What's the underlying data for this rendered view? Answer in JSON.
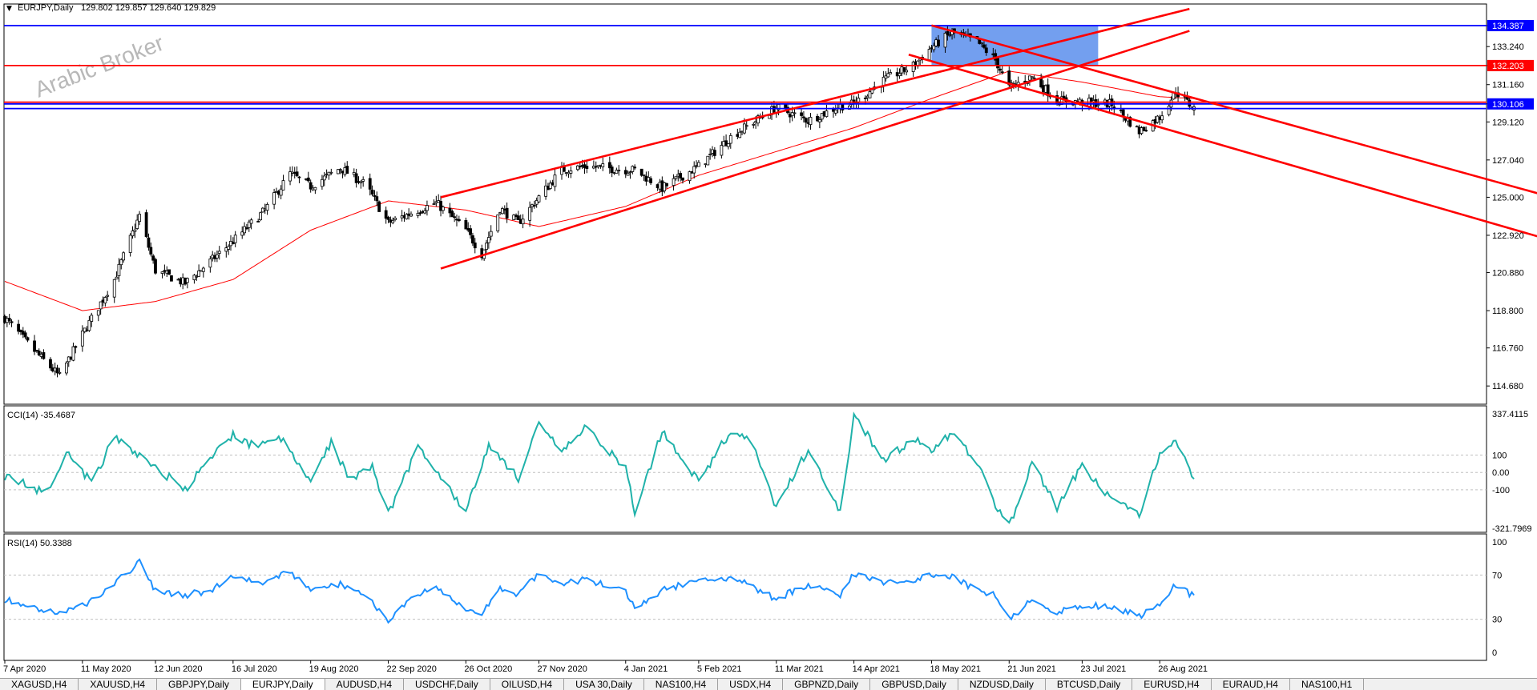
{
  "header": {
    "symbol_label": "EURJPY,Daily",
    "ohlc": "129.802 129.857 129.640 129.829",
    "watermark": "Arabic Broker"
  },
  "price_axis": {
    "ticks": [
      "134.387",
      "133.240",
      "132.203",
      "131.160",
      "130.106",
      "129.120",
      "127.040",
      "125.000",
      "122.920",
      "120.880",
      "118.800",
      "116.760",
      "114.680"
    ],
    "highlight_labels": [
      {
        "text": "134.387",
        "color": "#0000ff"
      },
      {
        "text": "132.203",
        "color": "#ff0000"
      },
      {
        "text": "130.106",
        "color": "#0000ff"
      }
    ]
  },
  "cci_panel": {
    "label": "CCI(14) -35.4687",
    "ticks": [
      "337.4115",
      "100",
      "0.00",
      "-100",
      "-321.7969"
    ]
  },
  "rsi_panel": {
    "label": "RSI(14) 50.3388",
    "ticks": [
      "100",
      "70",
      "30",
      "0"
    ]
  },
  "time_axis": {
    "ticks": [
      "7 Apr 2020",
      "11 May 2020",
      "12 Jun 2020",
      "16 Jul 2020",
      "19 Aug 2020",
      "22 Sep 2020",
      "26 Oct 2020",
      "27 Nov 2020",
      "4 Jan 2021",
      "5 Feb 2021",
      "11 Mar 2021",
      "14 Apr 2021",
      "18 May 2021",
      "21 Jun 2021",
      "23 Jul 2021",
      "26 Aug 2021"
    ]
  },
  "tabs": [
    {
      "label": "XAGUSD,H4",
      "active": false
    },
    {
      "label": "XAUUSD,H4",
      "active": false
    },
    {
      "label": "GBPJPY,Daily",
      "active": false
    },
    {
      "label": "EURJPY,Daily",
      "active": true
    },
    {
      "label": "AUDUSD,H4",
      "active": false
    },
    {
      "label": "USDCHF,Daily",
      "active": false
    },
    {
      "label": "OILUSD,H4",
      "active": false
    },
    {
      "label": "USA 30,Daily",
      "active": false
    },
    {
      "label": "NAS100,H4",
      "active": false
    },
    {
      "label": "USDX,H4",
      "active": false
    },
    {
      "label": "GBPNZD,Daily",
      "active": false
    },
    {
      "label": "GBPUSD,Daily",
      "active": false
    },
    {
      "label": "NZDUSD,Daily",
      "active": false
    },
    {
      "label": "BTCUSD,Daily",
      "active": false
    },
    {
      "label": "EURUSD,H4",
      "active": false
    },
    {
      "label": "EURAUD,H4",
      "active": false
    },
    {
      "label": "NAS100,H1",
      "active": false
    }
  ],
  "colors": {
    "candle": "#000000",
    "ma": "#ff0000",
    "trendline": "#ff0000",
    "support_red": "#ff0000",
    "support_blue": "#0000ff",
    "zone": "#6495ed",
    "cci": "#20b2aa",
    "rsi": "#1e90ff",
    "grid_dotted": "#c0c0c0"
  },
  "chart_data": [
    {
      "type": "candlestick",
      "title": "EURJPY,Daily",
      "ylim": [
        113.9,
        135.0
      ],
      "x_range": [
        "2020-04-07",
        "2021-09-02"
      ],
      "series": [
        {
          "name": "EURJPY",
          "points": [
            [
              "2020-04-07",
              118.4
            ],
            [
              "2020-04-20",
              116.6
            ],
            [
              "2020-05-01",
              115.2
            ],
            [
              "2020-05-11",
              117.5
            ],
            [
              "2020-05-25",
              120.5
            ],
            [
              "2020-06-05",
              124.0
            ],
            [
              "2020-06-12",
              121.0
            ],
            [
              "2020-06-25",
              120.3
            ],
            [
              "2020-07-07",
              121.6
            ],
            [
              "2020-07-16",
              122.6
            ],
            [
              "2020-07-30",
              124.3
            ],
            [
              "2020-08-10",
              126.3
            ],
            [
              "2020-08-19",
              125.6
            ],
            [
              "2020-09-01",
              126.6
            ],
            [
              "2020-09-12",
              125.7
            ],
            [
              "2020-09-22",
              123.6
            ],
            [
              "2020-10-05",
              124.3
            ],
            [
              "2020-10-13",
              124.7
            ],
            [
              "2020-10-26",
              123.2
            ],
            [
              "2020-11-02",
              121.9
            ],
            [
              "2020-11-10",
              124.4
            ],
            [
              "2020-11-18",
              123.6
            ],
            [
              "2020-11-27",
              125.0
            ],
            [
              "2020-12-07",
              126.5
            ],
            [
              "2020-12-18",
              126.7
            ],
            [
              "2021-01-04",
              126.5
            ],
            [
              "2021-01-08",
              126.5
            ],
            [
              "2021-01-20",
              125.5
            ],
            [
              "2021-02-05",
              126.7
            ],
            [
              "2021-02-20",
              128.4
            ],
            [
              "2021-03-11",
              129.9
            ],
            [
              "2021-03-25",
              129.2
            ],
            [
              "2021-04-08",
              130.0
            ],
            [
              "2021-04-14",
              130.1
            ],
            [
              "2021-04-27",
              131.4
            ],
            [
              "2021-05-10",
              132.2
            ],
            [
              "2021-05-18",
              133.2
            ],
            [
              "2021-05-27",
              134.0
            ],
            [
              "2021-06-07",
              133.5
            ],
            [
              "2021-06-15",
              132.5
            ],
            [
              "2021-06-21",
              131.0
            ],
            [
              "2021-07-01",
              131.6
            ],
            [
              "2021-07-12",
              130.3
            ],
            [
              "2021-07-23",
              130.2
            ],
            [
              "2021-08-05",
              130.1
            ],
            [
              "2021-08-17",
              128.6
            ],
            [
              "2021-08-26",
              129.4
            ],
            [
              "2021-09-02",
              130.8
            ],
            [
              "2021-09-10",
              129.83
            ]
          ]
        },
        {
          "name": "MA",
          "points": [
            [
              "2020-04-07",
              120.4
            ],
            [
              "2020-05-11",
              118.8
            ],
            [
              "2020-06-12",
              119.3
            ],
            [
              "2020-07-16",
              120.5
            ],
            [
              "2020-08-19",
              123.2
            ],
            [
              "2020-09-22",
              124.8
            ],
            [
              "2020-10-26",
              124.3
            ],
            [
              "2020-11-27",
              123.4
            ],
            [
              "2021-01-04",
              124.5
            ],
            [
              "2021-02-05",
              126.2
            ],
            [
              "2021-03-11",
              127.5
            ],
            [
              "2021-04-14",
              128.8
            ],
            [
              "2021-05-18",
              130.4
            ],
            [
              "2021-06-21",
              131.9
            ],
            [
              "2021-07-23",
              131.3
            ],
            [
              "2021-08-26",
              130.5
            ],
            [
              "2021-09-10",
              130.4
            ]
          ]
        }
      ],
      "horizontal_lines": [
        {
          "name": "resistance-top",
          "price": 134.387,
          "color": "#0000ff"
        },
        {
          "name": "resistance-mid",
          "price": 132.203,
          "color": "#ff0000"
        },
        {
          "name": "support-blue",
          "price": 130.106,
          "color": "#0000ff"
        },
        {
          "name": "support-red",
          "price": 130.2,
          "color": "#ff0000"
        },
        {
          "name": "support-blue-2",
          "price": 129.85,
          "color": "#0000ff"
        }
      ],
      "trendlines": [
        {
          "name": "channel-upper",
          "from": [
            "2020-10-15",
            125.0
          ],
          "to": [
            "2021-09-08",
            135.3
          ]
        },
        {
          "name": "channel-lower",
          "from": [
            "2020-10-15",
            121.1
          ],
          "to": [
            "2021-09-08",
            134.1
          ]
        },
        {
          "name": "descending-upper",
          "from": [
            "2021-05-18",
            134.4
          ],
          "to": [
            "2022-07-20",
            119.6
          ]
        },
        {
          "name": "descending-lower",
          "from": [
            "2021-05-08",
            132.8
          ],
          "to": [
            "2022-07-20",
            117.0
          ]
        }
      ],
      "zones": [
        {
          "name": "supply-zone",
          "from_date": "2021-05-18",
          "to_date": "2021-07-30",
          "top": 134.387,
          "bottom": 132.203,
          "color": "#6495ed"
        }
      ]
    },
    {
      "type": "line",
      "title": "CCI(14) -35.4687",
      "ylim": [
        -321.7969,
        337.4115
      ],
      "levels": [
        100,
        0,
        -100
      ],
      "series": [
        {
          "name": "CCI(14)",
          "points": [
            [
              "2020-04-07",
              -20
            ],
            [
              "2020-04-25",
              -120
            ],
            [
              "2020-05-04",
              120
            ],
            [
              "2020-05-15",
              -60
            ],
            [
              "2020-05-25",
              200
            ],
            [
              "2020-06-12",
              30
            ],
            [
              "2020-06-25",
              -100
            ],
            [
              "2020-07-07",
              90
            ],
            [
              "2020-07-16",
              220
            ],
            [
              "2020-07-25",
              150
            ],
            [
              "2020-08-05",
              210
            ],
            [
              "2020-08-19",
              -60
            ],
            [
              "2020-08-28",
              180
            ],
            [
              "2020-09-05",
              -40
            ],
            [
              "2020-09-15",
              40
            ],
            [
              "2020-09-22",
              -240
            ],
            [
              "2020-10-05",
              150
            ],
            [
              "2020-10-13",
              20
            ],
            [
              "2020-10-26",
              -230
            ],
            [
              "2020-11-05",
              160
            ],
            [
              "2020-11-18",
              -30
            ],
            [
              "2020-11-27",
              270
            ],
            [
              "2020-12-07",
              120
            ],
            [
              "2020-12-18",
              260
            ],
            [
              "2021-01-04",
              20
            ],
            [
              "2021-01-08",
              -230
            ],
            [
              "2021-01-20",
              240
            ],
            [
              "2021-02-05",
              -50
            ],
            [
              "2021-02-20",
              260
            ],
            [
              "2021-03-01",
              150
            ],
            [
              "2021-03-11",
              -210
            ],
            [
              "2021-03-25",
              140
            ],
            [
              "2021-04-08",
              -240
            ],
            [
              "2021-04-14",
              337
            ],
            [
              "2021-04-27",
              60
            ],
            [
              "2021-05-10",
              200
            ],
            [
              "2021-05-18",
              120
            ],
            [
              "2021-05-27",
              230
            ],
            [
              "2021-06-07",
              60
            ],
            [
              "2021-06-15",
              -180
            ],
            [
              "2021-06-21",
              -310
            ],
            [
              "2021-07-01",
              60
            ],
            [
              "2021-07-12",
              -200
            ],
            [
              "2021-07-23",
              40
            ],
            [
              "2021-08-05",
              -160
            ],
            [
              "2021-08-17",
              -240
            ],
            [
              "2021-08-26",
              100
            ],
            [
              "2021-09-02",
              190
            ],
            [
              "2021-09-10",
              -35.4687
            ]
          ]
        }
      ]
    },
    {
      "type": "line",
      "title": "RSI(14) 50.3388",
      "ylim": [
        0,
        100
      ],
      "levels": [
        70,
        30
      ],
      "series": [
        {
          "name": "RSI(14)",
          "points": [
            [
              "2020-04-07",
              48
            ],
            [
              "2020-04-20",
              40
            ],
            [
              "2020-05-01",
              36
            ],
            [
              "2020-05-11",
              42
            ],
            [
              "2020-05-25",
              62
            ],
            [
              "2020-06-05",
              82
            ],
            [
              "2020-06-12",
              55
            ],
            [
              "2020-06-25",
              52
            ],
            [
              "2020-07-07",
              56
            ],
            [
              "2020-07-16",
              70
            ],
            [
              "2020-07-30",
              63
            ],
            [
              "2020-08-10",
              73
            ],
            [
              "2020-08-19",
              55
            ],
            [
              "2020-09-01",
              62
            ],
            [
              "2020-09-12",
              52
            ],
            [
              "2020-09-22",
              30
            ],
            [
              "2020-10-05",
              52
            ],
            [
              "2020-10-13",
              58
            ],
            [
              "2020-10-26",
              38
            ],
            [
              "2020-11-02",
              36
            ],
            [
              "2020-11-10",
              58
            ],
            [
              "2020-11-18",
              52
            ],
            [
              "2020-11-27",
              72
            ],
            [
              "2020-12-07",
              63
            ],
            [
              "2020-12-18",
              66
            ],
            [
              "2021-01-04",
              54
            ],
            [
              "2021-01-08",
              40
            ],
            [
              "2021-01-20",
              56
            ],
            [
              "2021-02-05",
              66
            ],
            [
              "2021-02-20",
              68
            ],
            [
              "2021-03-11",
              48
            ],
            [
              "2021-03-25",
              62
            ],
            [
              "2021-04-08",
              52
            ],
            [
              "2021-04-14",
              72
            ],
            [
              "2021-04-27",
              62
            ],
            [
              "2021-05-10",
              66
            ],
            [
              "2021-05-18",
              70
            ],
            [
              "2021-05-27",
              68
            ],
            [
              "2021-06-07",
              56
            ],
            [
              "2021-06-15",
              52
            ],
            [
              "2021-06-21",
              30
            ],
            [
              "2021-07-01",
              48
            ],
            [
              "2021-07-12",
              36
            ],
            [
              "2021-07-23",
              42
            ],
            [
              "2021-08-05",
              42
            ],
            [
              "2021-08-17",
              32
            ],
            [
              "2021-08-26",
              45
            ],
            [
              "2021-09-02",
              62
            ],
            [
              "2021-09-10",
              50.3388
            ]
          ]
        }
      ]
    }
  ]
}
